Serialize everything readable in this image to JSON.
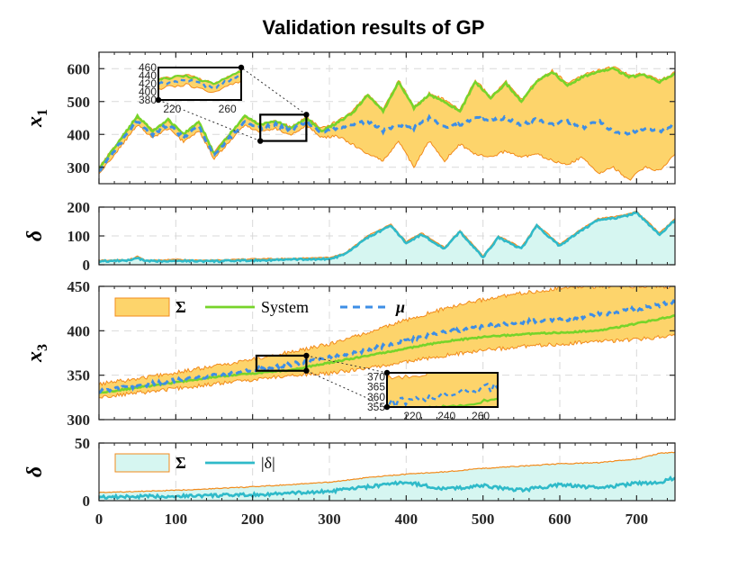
{
  "chart_data": {
    "type": "line",
    "title": "Validation results of GP",
    "xlabel": "",
    "xlim": [
      0,
      750
    ],
    "xticks": [
      0,
      100,
      200,
      300,
      400,
      500,
      600,
      700
    ],
    "xtick_labels": [
      "0",
      "100",
      "200",
      "300",
      "400",
      "500",
      "600",
      "700"
    ],
    "colors": {
      "band_x1": "#fdd46b",
      "band_edge": "#f28b1c",
      "system": "#77d42a",
      "mu": "#3d8ee6",
      "delta_fill": "#d6f6f1",
      "delta_line": "#2fbac9"
    },
    "panels": [
      {
        "id": "x1",
        "ylabel": "x_1",
        "ylabel_main": "x",
        "ylabel_sub": "1",
        "ylim": [
          250,
          650
        ],
        "yticks": [
          300,
          400,
          500,
          600
        ],
        "ytick_labels": [
          "300",
          "400",
          "500",
          "600"
        ],
        "series": [
          {
            "name": "System",
            "x": [
              0,
              20,
              50,
              70,
              90,
              110,
              130,
              150,
              170,
              190,
              210,
              230,
              250,
              270,
              290,
              310,
              330,
              350,
              370,
              390,
              410,
              430,
              450,
              470,
              490,
              510,
              530,
              550,
              570,
              590,
              610,
              630,
              650,
              670,
              690,
              710,
              730,
              750
            ],
            "values": [
              295,
              360,
              455,
              410,
              445,
              400,
              440,
              340,
              400,
              455,
              430,
              440,
              420,
              450,
              410,
              435,
              465,
              520,
              470,
              560,
              480,
              520,
              500,
              470,
              560,
              510,
              555,
              500,
              560,
              590,
              550,
              575,
              590,
              600,
              575,
              580,
              560,
              585
            ]
          },
          {
            "name": "mu",
            "x": [
              0,
              20,
              50,
              70,
              90,
              110,
              130,
              150,
              170,
              190,
              210,
              230,
              250,
              270,
              290,
              310,
              330,
              350,
              370,
              390,
              410,
              430,
              450,
              470,
              490,
              510,
              530,
              550,
              570,
              590,
              610,
              630,
              650,
              670,
              690,
              710,
              730,
              750
            ],
            "values": [
              290,
              350,
              440,
              400,
              430,
              390,
              425,
              335,
              390,
              440,
              420,
              430,
              410,
              440,
              405,
              420,
              430,
              440,
              410,
              430,
              420,
              450,
              420,
              430,
              450,
              440,
              450,
              430,
              445,
              430,
              440,
              420,
              440,
              410,
              400,
              420,
              410,
              430
            ]
          },
          {
            "name": "Sigma",
            "x": [
              0,
              20,
              50,
              70,
              90,
              110,
              130,
              150,
              170,
              190,
              210,
              230,
              250,
              270,
              290,
              310,
              330,
              350,
              370,
              390,
              410,
              430,
              450,
              470,
              490,
              510,
              530,
              550,
              570,
              590,
              610,
              630,
              650,
              670,
              690,
              710,
              730,
              750
            ],
            "lower": [
              280,
              338,
              428,
              390,
              418,
              378,
              412,
              325,
              378,
              428,
              408,
              418,
              398,
              428,
              390,
              395,
              370,
              340,
              320,
              380,
              300,
              380,
              320,
              370,
              340,
              330,
              350,
              330,
              340,
              320,
              310,
              330,
              280,
              300,
              260,
              300,
              290,
              340
            ],
            "upper": [
              300,
              362,
              452,
              412,
              442,
              402,
              438,
              345,
              402,
              452,
              432,
              442,
              422,
              452,
              418,
              440,
              470,
              525,
              475,
              565,
              485,
              525,
              505,
              475,
              565,
              515,
              560,
              505,
              565,
              595,
              555,
              580,
              595,
              605,
              580,
              585,
              565,
              590
            ]
          }
        ],
        "inset": {
          "xlim": [
            210,
            270
          ],
          "ylim": [
            380,
            460
          ],
          "xticks": [
            220,
            260
          ],
          "xtick_labels": [
            "220",
            "260"
          ],
          "yticks": [
            380,
            400,
            420,
            440,
            460
          ],
          "ytick_labels": [
            "380",
            "400",
            "420",
            "440",
            "460"
          ]
        }
      },
      {
        "id": "delta1",
        "ylabel": "δ",
        "ylim": [
          0,
          200
        ],
        "yticks": [
          0,
          100,
          200
        ],
        "ytick_labels": [
          "0",
          "100",
          "200"
        ],
        "series": [
          {
            "name": "Sigma",
            "x": [
              0,
              40,
              50,
              60,
              100,
              150,
              200,
              250,
              300,
              320,
              350,
              380,
              400,
              420,
              450,
              470,
              500,
              520,
              550,
              570,
              600,
              620,
              650,
              680,
              700,
              730,
              750
            ],
            "values": [
              15,
              18,
              30,
              15,
              18,
              16,
              20,
              22,
              25,
              40,
              100,
              140,
              80,
              110,
              60,
              120,
              30,
              100,
              60,
              140,
              70,
              110,
              160,
              170,
              185,
              110,
              160
            ]
          },
          {
            "name": "|delta|",
            "x": [
              0,
              40,
              50,
              60,
              100,
              150,
              200,
              250,
              300,
              320,
              350,
              380,
              400,
              420,
              450,
              470,
              500,
              520,
              550,
              570,
              600,
              620,
              650,
              680,
              700,
              730,
              750
            ],
            "values": [
              12,
              15,
              25,
              12,
              14,
              12,
              15,
              18,
              20,
              35,
              95,
              135,
              75,
              105,
              55,
              115,
              25,
              95,
              55,
              135,
              65,
              105,
              155,
              165,
              180,
              105,
              155
            ]
          }
        ]
      },
      {
        "id": "x3",
        "ylabel": "x_3",
        "ylabel_main": "x",
        "ylabel_sub": "3",
        "ylim": [
          300,
          450
        ],
        "yticks": [
          300,
          350,
          400,
          450
        ],
        "ytick_labels": [
          "300",
          "350",
          "400",
          "450"
        ],
        "series": [
          {
            "name": "System",
            "x": [
              0,
              50,
              100,
              150,
              200,
              250,
              300,
              350,
              400,
              450,
              500,
              550,
              600,
              650,
              700,
              750
            ],
            "values": [
              330,
              336,
              342,
              348,
              352,
              356,
              364,
              372,
              380,
              388,
              393,
              396,
              398,
              400,
              408,
              417
            ]
          },
          {
            "name": "mu",
            "x": [
              0,
              50,
              100,
              150,
              200,
              250,
              300,
              350,
              400,
              450,
              500,
              550,
              600,
              650,
              700,
              750
            ],
            "values": [
              332,
              338,
              344,
              350,
              356,
              362,
              370,
              378,
              390,
              398,
              405,
              410,
              412,
              418,
              425,
              432
            ]
          },
          {
            "name": "Sigma",
            "x": [
              0,
              50,
              100,
              150,
              200,
              250,
              300,
              350,
              400,
              450,
              500,
              550,
              600,
              650,
              700,
              750
            ],
            "lower": [
              325,
              330,
              335,
              340,
              345,
              350,
              352,
              358,
              365,
              372,
              378,
              382,
              385,
              388,
              390,
              395
            ],
            "upper": [
              340,
              346,
              353,
              360,
              368,
              376,
              385,
              398,
              412,
              425,
              435,
              442,
              448,
              450,
              450,
              450
            ]
          }
        ],
        "inset": {
          "xlim": [
            205,
            270
          ],
          "ylim": [
            355,
            372
          ],
          "xticks": [
            220,
            240,
            260
          ],
          "xtick_labels": [
            "220",
            "240",
            "260"
          ],
          "yticks": [
            355,
            360,
            365,
            370
          ],
          "ytick_labels": [
            "355",
            "360",
            "365",
            "370"
          ]
        }
      },
      {
        "id": "delta3",
        "ylabel": "δ",
        "ylim": [
          0,
          50
        ],
        "yticks": [
          0,
          50
        ],
        "ytick_labels": [
          "0",
          "50"
        ],
        "series": [
          {
            "name": "Sigma",
            "x": [
              0,
              100,
              200,
              300,
              350,
              400,
              450,
              500,
              550,
              600,
              650,
              700,
              730,
              750
            ],
            "values": [
              7,
              9,
              12,
              16,
              20,
              23,
              25,
              28,
              30,
              32,
              33,
              36,
              41,
              42
            ]
          },
          {
            "name": "|delta|",
            "x": [
              0,
              100,
              200,
              300,
              350,
              400,
              450,
              500,
              550,
              600,
              650,
              700,
              730,
              750
            ],
            "values": [
              3,
              4,
              5,
              8,
              12,
              16,
              10,
              13,
              9,
              14,
              11,
              15,
              16,
              20
            ]
          }
        ]
      }
    ],
    "legend_x3": [
      {
        "key": "band",
        "label": "Σ"
      },
      {
        "key": "system",
        "label": "System"
      },
      {
        "key": "mu",
        "label": "μ"
      }
    ],
    "legend_delta3": [
      {
        "key": "band",
        "label": "Σ"
      },
      {
        "key": "delta",
        "label": "|δ|"
      }
    ]
  }
}
